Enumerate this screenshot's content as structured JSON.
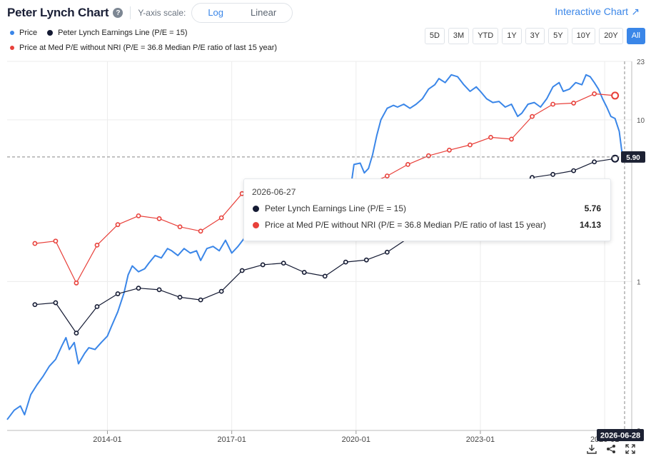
{
  "header": {
    "title": "Peter Lynch Chart",
    "help": "?",
    "scale_label": "Y-axis scale:",
    "scale_log": "Log",
    "scale_linear": "Linear",
    "interactive": "Interactive Chart",
    "interactive_arrow": "↗"
  },
  "legend": {
    "price": "Price",
    "earnings": "Peter Lynch Earnings Line (P/E = 15)",
    "med_pe": "Price at Med P/E without NRI (P/E = 36.8 Median P/E ratio of last 15 year)"
  },
  "ranges": [
    "5D",
    "3M",
    "YTD",
    "1Y",
    "3Y",
    "5Y",
    "10Y",
    "20Y",
    "All"
  ],
  "colors": {
    "price": "#3a86e8",
    "earnings": "#141a33",
    "med_pe": "#e8403a",
    "grid": "#ececec"
  },
  "tooltip": {
    "date": "2026-06-27",
    "earnings_label": "Peter Lynch Earnings Line (P/E = 15)",
    "earnings_value": "5.76",
    "med_label": "Price at Med P/E without NRI (P/E = 36.8 Median P/E ratio of last 15 year)",
    "med_value": "14.13"
  },
  "cursor": {
    "price_label": "5.90",
    "date_label": "2026-06-28"
  },
  "chart_data": {
    "type": "line",
    "yscale": "log",
    "ylim": [
      0.12,
      23
    ],
    "y_ticks": [
      {
        "v": 23,
        "label": "23"
      },
      {
        "v": 10,
        "label": "10"
      },
      {
        "v": 1,
        "label": "1"
      },
      {
        "v": 0.12,
        "label": "0"
      }
    ],
    "x_ticks": [
      {
        "t": 2014.0,
        "label": "2014-01"
      },
      {
        "t": 2017.0,
        "label": "2017-01"
      },
      {
        "t": 2020.0,
        "label": "2020-01"
      },
      {
        "t": 2023.0,
        "label": "2023-01"
      },
      {
        "t": 2026.0,
        "label": "2026-01"
      }
    ],
    "series": [
      {
        "name": "Price",
        "color": "#3a86e8",
        "markers": false,
        "points": [
          [
            2011.58,
            0.14
          ],
          [
            2011.75,
            0.16
          ],
          [
            2011.9,
            0.17
          ],
          [
            2012.0,
            0.15
          ],
          [
            2012.15,
            0.2
          ],
          [
            2012.3,
            0.23
          ],
          [
            2012.45,
            0.26
          ],
          [
            2012.6,
            0.3
          ],
          [
            2012.75,
            0.33
          ],
          [
            2012.9,
            0.4
          ],
          [
            2013.0,
            0.45
          ],
          [
            2013.08,
            0.38
          ],
          [
            2013.2,
            0.42
          ],
          [
            2013.3,
            0.31
          ],
          [
            2013.45,
            0.36
          ],
          [
            2013.55,
            0.39
          ],
          [
            2013.7,
            0.38
          ],
          [
            2013.85,
            0.42
          ],
          [
            2014.0,
            0.46
          ],
          [
            2014.1,
            0.53
          ],
          [
            2014.25,
            0.65
          ],
          [
            2014.4,
            0.85
          ],
          [
            2014.5,
            1.1
          ],
          [
            2014.6,
            1.25
          ],
          [
            2014.75,
            1.15
          ],
          [
            2014.9,
            1.2
          ],
          [
            2015.0,
            1.3
          ],
          [
            2015.15,
            1.45
          ],
          [
            2015.3,
            1.4
          ],
          [
            2015.45,
            1.6
          ],
          [
            2015.55,
            1.55
          ],
          [
            2015.7,
            1.45
          ],
          [
            2015.85,
            1.6
          ],
          [
            2016.0,
            1.5
          ],
          [
            2016.15,
            1.55
          ],
          [
            2016.25,
            1.35
          ],
          [
            2016.4,
            1.6
          ],
          [
            2016.55,
            1.65
          ],
          [
            2016.7,
            1.55
          ],
          [
            2016.85,
            1.8
          ],
          [
            2017.0,
            1.5
          ],
          [
            2017.15,
            1.65
          ],
          [
            2017.3,
            1.85
          ],
          [
            2017.45,
            2.0
          ],
          [
            2017.6,
            2.05
          ],
          [
            2017.75,
            2.0
          ],
          [
            2017.9,
            1.95
          ],
          [
            2018.0,
            2.05
          ],
          [
            2018.15,
            2.3
          ],
          [
            2018.3,
            2.5
          ],
          [
            2018.45,
            2.35
          ],
          [
            2018.6,
            2.6
          ],
          [
            2018.75,
            2.8
          ],
          [
            2018.9,
            2.9
          ],
          [
            2019.0,
            2.7
          ],
          [
            2019.15,
            3.0
          ],
          [
            2019.3,
            3.4
          ],
          [
            2019.45,
            3.2
          ],
          [
            2019.6,
            3.5
          ],
          [
            2019.75,
            3.9
          ],
          [
            2019.9,
            4.3
          ],
          [
            2019.95,
            5.3
          ],
          [
            2020.1,
            5.4
          ],
          [
            2020.2,
            4.7
          ],
          [
            2020.3,
            5.0
          ],
          [
            2020.4,
            6.1
          ],
          [
            2020.5,
            8.0
          ],
          [
            2020.6,
            10.0
          ],
          [
            2020.75,
            11.8
          ],
          [
            2020.9,
            12.3
          ],
          [
            2021.0,
            12.0
          ],
          [
            2021.15,
            12.5
          ],
          [
            2021.3,
            11.8
          ],
          [
            2021.45,
            12.5
          ],
          [
            2021.6,
            13.5
          ],
          [
            2021.75,
            15.5
          ],
          [
            2021.9,
            16.5
          ],
          [
            2022.0,
            18.0
          ],
          [
            2022.15,
            17.0
          ],
          [
            2022.3,
            19.0
          ],
          [
            2022.45,
            18.5
          ],
          [
            2022.6,
            16.5
          ],
          [
            2022.75,
            15.0
          ],
          [
            2022.9,
            16.0
          ],
          [
            2023.0,
            15.0
          ],
          [
            2023.15,
            13.5
          ],
          [
            2023.3,
            12.8
          ],
          [
            2023.45,
            13.0
          ],
          [
            2023.6,
            12.0
          ],
          [
            2023.75,
            12.5
          ],
          [
            2023.9,
            10.5
          ],
          [
            2024.0,
            11.0
          ],
          [
            2024.15,
            12.5
          ],
          [
            2024.3,
            12.8
          ],
          [
            2024.45,
            12.0
          ],
          [
            2024.6,
            13.5
          ],
          [
            2024.75,
            16.0
          ],
          [
            2024.9,
            17.0
          ],
          [
            2025.0,
            15.0
          ],
          [
            2025.15,
            15.5
          ],
          [
            2025.3,
            17.0
          ],
          [
            2025.45,
            16.5
          ],
          [
            2025.55,
            19.0
          ],
          [
            2025.65,
            18.5
          ],
          [
            2025.75,
            17.0
          ],
          [
            2025.85,
            15.5
          ],
          [
            2025.95,
            13.5
          ],
          [
            2026.05,
            12.0
          ],
          [
            2026.15,
            10.5
          ],
          [
            2026.25,
            10.2
          ],
          [
            2026.35,
            8.5
          ],
          [
            2026.42,
            6.2
          ],
          [
            2026.48,
            5.9
          ]
        ]
      },
      {
        "name": "Peter Lynch Earnings Line (P/E = 15)",
        "color": "#141a33",
        "markers": true,
        "points": [
          [
            2012.25,
            0.72
          ],
          [
            2012.75,
            0.74
          ],
          [
            2013.25,
            0.48
          ],
          [
            2013.75,
            0.7
          ],
          [
            2014.25,
            0.84
          ],
          [
            2014.75,
            0.91
          ],
          [
            2015.25,
            0.89
          ],
          [
            2015.75,
            0.8
          ],
          [
            2016.25,
            0.77
          ],
          [
            2016.75,
            0.87
          ],
          [
            2017.25,
            1.17
          ],
          [
            2017.75,
            1.27
          ],
          [
            2018.25,
            1.3
          ],
          [
            2018.75,
            1.14
          ],
          [
            2019.25,
            1.08
          ],
          [
            2019.75,
            1.32
          ],
          [
            2020.25,
            1.36
          ],
          [
            2020.75,
            1.52
          ],
          [
            2021.25,
            1.85
          ],
          [
            2021.75,
            2.3
          ],
          [
            2022.25,
            2.9
          ],
          [
            2022.75,
            3.35
          ],
          [
            2023.25,
            3.7
          ],
          [
            2023.75,
            3.9
          ],
          [
            2024.25,
            4.4
          ],
          [
            2024.75,
            4.6
          ],
          [
            2025.25,
            4.85
          ],
          [
            2025.75,
            5.5
          ],
          [
            2026.25,
            5.76
          ]
        ]
      },
      {
        "name": "Price at Med P/E without NRI (P/E = 36.8 Median P/E ratio of last 15 year)",
        "color": "#e8403a",
        "markers": true,
        "points": [
          [
            2012.25,
            1.72
          ],
          [
            2012.75,
            1.78
          ],
          [
            2013.25,
            0.98
          ],
          [
            2013.75,
            1.68
          ],
          [
            2014.25,
            2.25
          ],
          [
            2014.75,
            2.55
          ],
          [
            2015.25,
            2.45
          ],
          [
            2015.75,
            2.18
          ],
          [
            2016.25,
            2.05
          ],
          [
            2016.75,
            2.48
          ],
          [
            2017.25,
            3.5
          ],
          [
            2017.75,
            3.85
          ],
          [
            2018.25,
            3.95
          ],
          [
            2018.75,
            3.7
          ],
          [
            2019.25,
            3.75
          ],
          [
            2019.75,
            3.75
          ],
          [
            2020.25,
            3.95
          ],
          [
            2020.75,
            4.5
          ],
          [
            2021.25,
            5.3
          ],
          [
            2021.75,
            6.0
          ],
          [
            2022.25,
            6.5
          ],
          [
            2022.75,
            7.0
          ],
          [
            2023.25,
            7.8
          ],
          [
            2023.75,
            7.6
          ],
          [
            2024.25,
            10.5
          ],
          [
            2024.75,
            12.5
          ],
          [
            2025.25,
            12.7
          ],
          [
            2025.75,
            14.5
          ],
          [
            2026.25,
            14.13
          ]
        ]
      }
    ],
    "cursor_date": "2026-06-28",
    "cursor_value": 5.9
  }
}
